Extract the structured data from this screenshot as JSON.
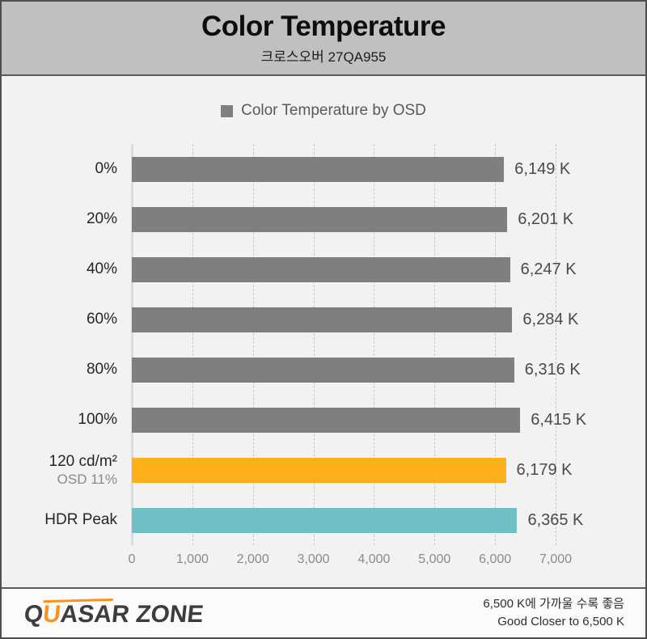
{
  "header": {
    "title": "Color Temperature",
    "subtitle": "크로스오버 27QA955"
  },
  "legend": {
    "label": "Color Temperature by OSD",
    "swatch_color": "#7f7f7f"
  },
  "chart_data": {
    "type": "bar",
    "orientation": "horizontal",
    "title": "Color Temperature",
    "subtitle": "크로스오버 27QA955",
    "legend_entries": [
      "Color Temperature by OSD"
    ],
    "legend_position": "top-center",
    "grid": "vertical-dashed",
    "xlabel": "",
    "ylabel": "",
    "xlim": [
      0,
      7000
    ],
    "x_ticks": [
      "0",
      "1,000",
      "2,000",
      "3,000",
      "4,000",
      "5,000",
      "6,000",
      "7,000"
    ],
    "x_tick_values": [
      0,
      1000,
      2000,
      3000,
      4000,
      5000,
      6000,
      7000
    ],
    "categories": [
      "0%",
      "20%",
      "40%",
      "60%",
      "80%",
      "100%",
      "120 cd/m²",
      "HDR Peak"
    ],
    "sublabels": [
      "",
      "",
      "",
      "",
      "",
      "",
      "OSD 11%",
      ""
    ],
    "values": [
      6149,
      6201,
      6247,
      6284,
      6316,
      6415,
      6179,
      6365
    ],
    "value_labels": [
      "6,149 K",
      "6,201 K",
      "6,247 K",
      "6,284 K",
      "6,316 K",
      "6,415 K",
      "6,179 K",
      "6,365 K"
    ],
    "bar_colors": [
      "#7f7f7f",
      "#7f7f7f",
      "#7f7f7f",
      "#7f7f7f",
      "#7f7f7f",
      "#7f7f7f",
      "#fcb11a",
      "#70bfc4"
    ]
  },
  "footer": {
    "logo_q": "Q",
    "logo_u": "U",
    "logo_rest": "ASAR ZONE",
    "logo_accent_color": "#f7941d",
    "note_ko": "6,500 K에 가까울 수록 좋음",
    "note_en": "Good Closer to 6,500 K"
  }
}
